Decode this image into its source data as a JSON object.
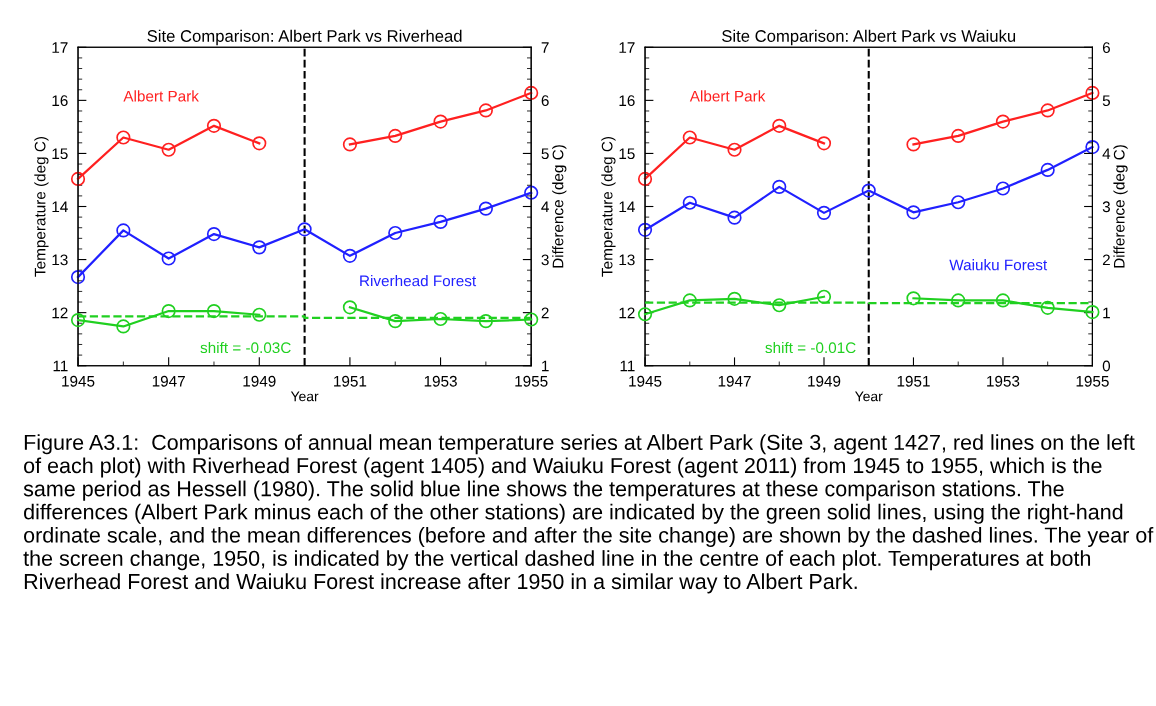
{
  "chart_data": [
    {
      "type": "line",
      "title": "Site Comparison: Albert Park vs Riverhead",
      "xlabel": "Year",
      "ylabel": "Temperature (deg C)",
      "y2label": "Difference (deg C)",
      "x": [
        1945,
        1946,
        1947,
        1948,
        1949,
        1950,
        1951,
        1952,
        1953,
        1954,
        1955
      ],
      "xlim": [
        1945,
        1955
      ],
      "xticks": [
        1945,
        1947,
        1949,
        1951,
        1953,
        1955
      ],
      "ylim": [
        11,
        17
      ],
      "yticks": [
        11,
        12,
        13,
        14,
        15,
        16,
        17
      ],
      "y2lim": [
        1,
        7
      ],
      "y2ticks": [
        1,
        2,
        3,
        4,
        5,
        6,
        7
      ],
      "marker": "circle",
      "grid": false,
      "legend": false,
      "series": [
        {
          "name": "Albert Park",
          "color": "#ff2020",
          "values": [
            14.52,
            15.3,
            15.07,
            15.52,
            15.19,
            null,
            15.17,
            15.33,
            15.6,
            15.81,
            16.14
          ]
        },
        {
          "name": "Riverhead Forest",
          "color": "#2020ff",
          "values": [
            12.67,
            13.55,
            13.02,
            13.48,
            13.23,
            13.57,
            13.07,
            13.5,
            13.71,
            13.96,
            14.26
          ]
        },
        {
          "color": "#20d020",
          "axis": "y2",
          "values": [
            1.86,
            1.74,
            2.03,
            2.03,
            1.96,
            null,
            2.1,
            1.84,
            1.88,
            1.84,
            1.87
          ]
        },
        {
          "color": "#20d020",
          "axis": "y2",
          "x": [
            1945,
            1950,
            1950,
            1955
          ],
          "values": [
            1.93,
            1.93,
            1.9,
            1.9
          ],
          "marker": "none",
          "line_style": "dashed"
        }
      ],
      "ref_lines": [
        {
          "axis": "x",
          "value": 1950,
          "color": "#000000",
          "line_style": "dashed"
        }
      ],
      "annotations": [
        "shift = -0.03C",
        "Figure A3.1:  Comparisons of annual mean temperature series at Albert Park (Site 3, agent 1427, red lines on the left of each plot) with Riverhead Forest (agent 1405) and Waiuku Forest (agent 2011) from 1945 to 1955, which is the same period as Hessell (1980). The solid blue line shows the temperatures at these comparison stations. The differences (Albert Park minus each of the other stations) are indicated by the green solid lines, using the right-hand ordinate scale, and the mean differences (before and after the site change) are shown by the dashed lines. The year of the screen change, 1950, is indicated by the vertical dashed line in the centre of each plot. Temperatures at both Riverhead Forest and Waiuku Forest increase after 1950 in a similar way to Albert Park."
      ]
    },
    {
      "type": "line",
      "title": "Site Comparison: Albert Park vs Waiuku",
      "xlabel": "Year",
      "ylabel": "Temperature (deg C)",
      "y2label": "Difference (deg C)",
      "x": [
        1945,
        1946,
        1947,
        1948,
        1949,
        1950,
        1951,
        1952,
        1953,
        1954,
        1955
      ],
      "xlim": [
        1945,
        1955
      ],
      "xticks": [
        1945,
        1947,
        1949,
        1951,
        1953,
        1955
      ],
      "ylim": [
        11,
        17
      ],
      "yticks": [
        11,
        12,
        13,
        14,
        15,
        16,
        17
      ],
      "y2lim": [
        0,
        6
      ],
      "y2ticks": [
        0,
        1,
        2,
        3,
        4,
        5,
        6
      ],
      "marker": "circle",
      "grid": false,
      "legend": false,
      "series": [
        {
          "name": "Albert Park",
          "color": "#ff2020",
          "values": [
            14.52,
            15.3,
            15.07,
            15.52,
            15.19,
            null,
            15.17,
            15.33,
            15.6,
            15.81,
            16.14
          ]
        },
        {
          "name": "Waiuku Forest",
          "color": "#2020ff",
          "values": [
            13.56,
            14.07,
            13.79,
            14.37,
            13.88,
            14.3,
            13.89,
            14.08,
            14.34,
            14.69,
            15.12
          ]
        },
        {
          "color": "#20d020",
          "axis": "y2",
          "values": [
            0.97,
            1.23,
            1.26,
            1.14,
            1.3,
            null,
            1.27,
            1.23,
            1.23,
            1.09,
            1.01
          ]
        },
        {
          "color": "#20d020",
          "axis": "y2",
          "x": [
            1945,
            1950,
            1950,
            1955
          ],
          "values": [
            1.19,
            1.19,
            1.18,
            1.18
          ],
          "marker": "none",
          "line_style": "dashed"
        }
      ],
      "ref_lines": [
        {
          "axis": "x",
          "value": 1950,
          "color": "#000000",
          "line_style": "dashed"
        }
      ],
      "annotations": [
        "shift = -0.01C"
      ]
    }
  ]
}
